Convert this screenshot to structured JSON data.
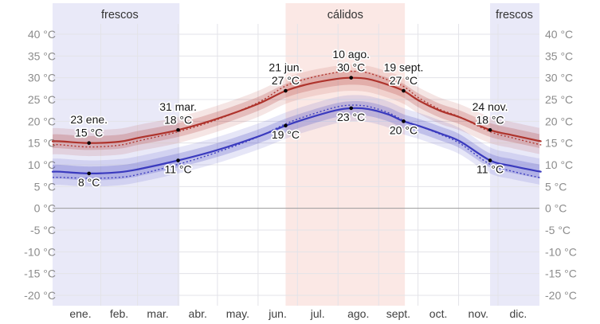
{
  "chart_data": {
    "type": "line",
    "title": "",
    "unit": "°C",
    "x_axis": {
      "months": [
        "ene.",
        "feb.",
        "mar.",
        "abr.",
        "may.",
        "jun.",
        "jul.",
        "ago.",
        "sept.",
        "oct.",
        "nov.",
        "dic."
      ],
      "month_boundary_days": [
        0,
        31,
        59,
        90,
        120,
        151,
        181,
        212,
        243,
        273,
        304,
        334,
        365
      ],
      "range_days": [
        0,
        365
      ],
      "grid": true
    },
    "y_axis": {
      "ticks": [
        {
          "value": 40,
          "label": "40 °C"
        },
        {
          "value": 35,
          "label": "35 °C"
        },
        {
          "value": 30,
          "label": "30 °C"
        },
        {
          "value": 25,
          "label": "25 °C"
        },
        {
          "value": 20,
          "label": "20 °C"
        },
        {
          "value": 15,
          "label": "15 °C"
        },
        {
          "value": 10,
          "label": "10 °C"
        },
        {
          "value": 5,
          "label": "5 °C"
        },
        {
          "value": 0,
          "label": "0 °C"
        },
        {
          "value": -5,
          "label": "-5 °C"
        },
        {
          "value": -10,
          "label": "-10 °C"
        },
        {
          "value": -15,
          "label": "-15 °C"
        },
        {
          "value": -20,
          "label": "-20 °C"
        }
      ],
      "range": [
        -20,
        40
      ],
      "shown_on_both_sides": true,
      "grid": true
    },
    "seasons": [
      {
        "label": "frescos",
        "type": "cool",
        "start_day": 0,
        "end_day": 91
      },
      {
        "label": "cálidos",
        "type": "warm",
        "start_day": 172,
        "end_day": 263
      },
      {
        "label": "frescos",
        "type": "cool",
        "start_day": 328,
        "end_day": 365
      }
    ],
    "series": [
      {
        "id": "high",
        "color": "#ae332c",
        "band_inner_delta": 1.6,
        "band_outer_delta": 3.0,
        "points_day_value_perceived": [
          [
            0,
            15.4,
            14.6
          ],
          [
            22,
            15.0,
            14.1
          ],
          [
            45,
            15.3,
            14.5
          ],
          [
            60,
            16.2,
            15.5
          ],
          [
            90,
            18.0,
            17.6
          ],
          [
            120,
            20.6,
            20.4
          ],
          [
            151,
            24.0,
            24.3
          ],
          [
            172,
            27.0,
            28.1
          ],
          [
            190,
            28.6,
            29.9
          ],
          [
            210,
            29.7,
            31.2
          ],
          [
            222,
            30.0,
            31.5
          ],
          [
            235,
            29.7,
            31.1
          ],
          [
            250,
            28.4,
            29.5
          ],
          [
            262,
            27.0,
            28.0
          ],
          [
            274,
            24.7,
            25.3
          ],
          [
            290,
            22.4,
            22.7
          ],
          [
            305,
            20.9,
            21.0
          ],
          [
            328,
            18.0,
            17.6
          ],
          [
            345,
            16.8,
            16.2
          ],
          [
            365,
            15.5,
            14.7
          ]
        ]
      },
      {
        "id": "low",
        "color": "#3a3abe",
        "band_inner_delta": 1.6,
        "band_outer_delta": 3.0,
        "points_day_value_perceived": [
          [
            0,
            8.4,
            7.1
          ],
          [
            22,
            8.0,
            6.9
          ],
          [
            45,
            8.3,
            7.1
          ],
          [
            60,
            9.0,
            7.8
          ],
          [
            90,
            11.0,
            10.1
          ],
          [
            120,
            13.4,
            12.9
          ],
          [
            151,
            16.5,
            16.4
          ],
          [
            172,
            19.0,
            19.4
          ],
          [
            190,
            20.8,
            21.4
          ],
          [
            210,
            22.5,
            23.2
          ],
          [
            222,
            23.0,
            23.7
          ],
          [
            235,
            22.8,
            23.4
          ],
          [
            250,
            21.6,
            22.0
          ],
          [
            262,
            20.0,
            20.2
          ],
          [
            274,
            18.9,
            18.9
          ],
          [
            290,
            17.2,
            17.0
          ],
          [
            305,
            15.4,
            14.9
          ],
          [
            328,
            11.0,
            10.1
          ],
          [
            345,
            9.7,
            8.5
          ],
          [
            365,
            8.5,
            7.1
          ]
        ]
      }
    ],
    "annotations": {
      "high": [
        {
          "date": "23 ene.",
          "temp": "15 °C",
          "day": 22,
          "value": 15
        },
        {
          "date": "31 mar.",
          "temp": "18 °C",
          "day": 90,
          "value": 18
        },
        {
          "date": "21 jun.",
          "temp": "27 °C",
          "day": 172,
          "value": 27
        },
        {
          "date": "10 ago.",
          "temp": "30 °C",
          "day": 222,
          "value": 30
        },
        {
          "date": "19 sept.",
          "temp": "27 °C",
          "day": 262,
          "value": 27
        },
        {
          "date": "24 nov.",
          "temp": "18 °C",
          "day": 328,
          "value": 18
        }
      ],
      "low": [
        {
          "temp": "8 °C",
          "day": 22,
          "value": 8
        },
        {
          "temp": "11 °C",
          "day": 90,
          "value": 11
        },
        {
          "temp": "19 °C",
          "day": 172,
          "value": 19
        },
        {
          "temp": "23 °C",
          "day": 222,
          "value": 23
        },
        {
          "temp": "20 °C",
          "day": 262,
          "value": 20
        },
        {
          "temp": "11 °C",
          "day": 328,
          "value": 11
        }
      ]
    },
    "colors": {
      "cool_band": "#e9e9f8",
      "warm_band": "#fbe8e5",
      "grid_line": "#e3e3e8",
      "zero_line": "#9a9a9a",
      "axis_text": "#8c8c8c",
      "month_text": "#3f3f3f",
      "season_text": "#333333",
      "annotation_text": "#161616",
      "dot": "#000000",
      "high_line": "#ae332c",
      "low_line": "#3a3abe"
    },
    "legend": {
      "visible": false
    }
  }
}
